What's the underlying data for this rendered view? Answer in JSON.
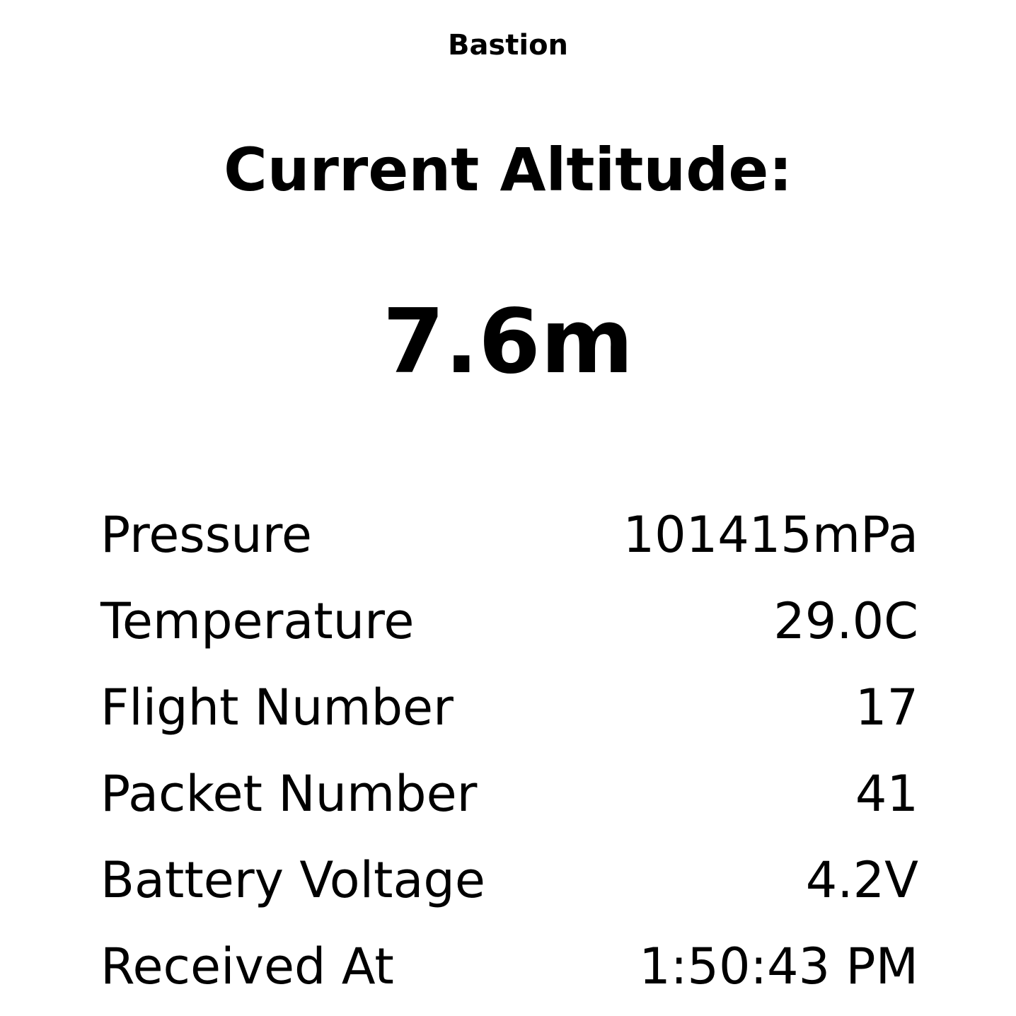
{
  "app": {
    "title": "Bastion"
  },
  "altitude": {
    "heading": "Current Altitude:",
    "value": "7.6m"
  },
  "readings": [
    {
      "label": "Pressure",
      "value": "101415mPa"
    },
    {
      "label": "Temperature",
      "value": "29.0C"
    },
    {
      "label": "Flight Number",
      "value": "17"
    },
    {
      "label": "Packet Number",
      "value": "41"
    },
    {
      "label": "Battery Voltage",
      "value": "4.2V"
    },
    {
      "label": "Received At",
      "value": "1:50:43 PM"
    }
  ]
}
